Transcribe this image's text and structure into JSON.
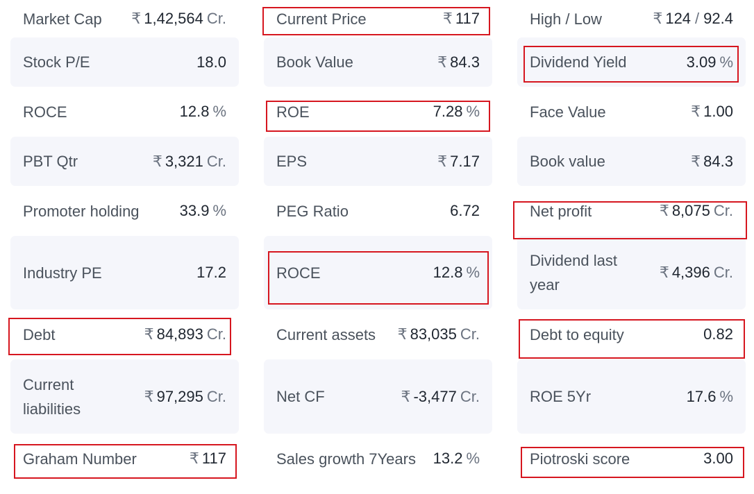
{
  "currency_symbol": "₹",
  "highlight_color": "#d6161f",
  "ratios": [
    {
      "name": "Market Cap",
      "value": "1,42,564",
      "currency": "₹",
      "unit": "Cr."
    },
    {
      "name": "Current Price",
      "value": "117",
      "currency": "₹",
      "unit": "",
      "highlighted": true
    },
    {
      "name": "High / Low",
      "value": "124",
      "value2": "92.4",
      "currency": "₹",
      "separator": "/"
    },
    {
      "name": "Stock P/E",
      "value": "18.0"
    },
    {
      "name": "Book Value",
      "value": "84.3",
      "currency": "₹"
    },
    {
      "name": "Dividend Yield",
      "value": "3.09",
      "unit": "%",
      "highlighted": true
    },
    {
      "name": "ROCE",
      "value": "12.8",
      "unit": "%"
    },
    {
      "name": "ROE",
      "value": "7.28",
      "unit": "%",
      "highlighted": true
    },
    {
      "name": "Face Value",
      "value": "1.00",
      "currency": "₹"
    },
    {
      "name": "PBT Qtr",
      "value": "3,321",
      "currency": "₹",
      "unit": "Cr."
    },
    {
      "name": "EPS",
      "value": "7.17",
      "currency": "₹"
    },
    {
      "name": "Book value",
      "value": "84.3",
      "currency": "₹"
    },
    {
      "name": "Promoter holding",
      "value": "33.9",
      "unit": "%"
    },
    {
      "name": "PEG Ratio",
      "value": "6.72"
    },
    {
      "name": "Net profit",
      "value": "8,075",
      "currency": "₹",
      "unit": "Cr.",
      "highlighted": true
    },
    {
      "name": "Industry PE",
      "value": "17.2"
    },
    {
      "name": "ROCE",
      "value": "12.8",
      "unit": "%",
      "highlighted": true
    },
    {
      "name": "Dividend last year",
      "value": "4,396",
      "currency": "₹",
      "unit": "Cr."
    },
    {
      "name": "Debt",
      "value": "84,893",
      "currency": "₹",
      "unit": "Cr.",
      "highlighted": true
    },
    {
      "name": "Current assets",
      "value": "83,035",
      "currency": "₹",
      "unit": "Cr."
    },
    {
      "name": "Debt to equity",
      "value": "0.82",
      "highlighted": true
    },
    {
      "name": "Current liabilities",
      "value": "97,295",
      "currency": "₹",
      "unit": "Cr."
    },
    {
      "name": "Net CF",
      "value": "-3,477",
      "currency": "₹",
      "unit": "Cr."
    },
    {
      "name": "ROE 5Yr",
      "value": "17.6",
      "unit": "%"
    },
    {
      "name": "Graham Number",
      "value": "117",
      "currency": "₹",
      "highlighted": true
    },
    {
      "name": "Sales growth 7Years",
      "value": "13.2",
      "unit": "%"
    },
    {
      "name": "Piotroski score",
      "value": "3.00",
      "highlighted": true
    }
  ]
}
